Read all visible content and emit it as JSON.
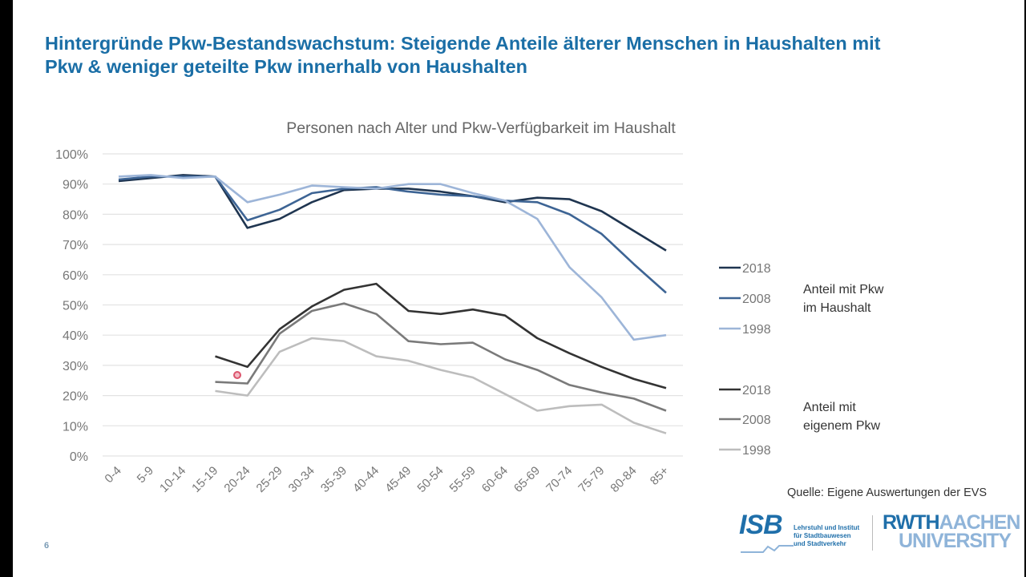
{
  "slide": {
    "title_line1": "Hintergründe Pkw-Bestandswachstum: Steigende Anteile älterer Menschen in Haushalten mit",
    "title_line2": "Pkw & weniger geteilte Pkw innerhalb von Haushalten",
    "source": "Quelle: Eigene Auswertungen der EVS",
    "page_number": "6",
    "logo_isb": {
      "acronym": "ISB",
      "line1": "Lehrstuhl und Institut",
      "line2": "für Stadtbauwesen",
      "line3": "und Stadtverkehr"
    },
    "logo_rwth": {
      "part1": "RWTH",
      "part2": "AACHEN",
      "part3": "UNIVERSITY"
    }
  },
  "chart_data": {
    "type": "line",
    "title": "Personen nach Alter und Pkw-Verfügbarkeit im Haushalt",
    "xlabel": "",
    "ylabel": "",
    "ylim": [
      0,
      100
    ],
    "yticks": [
      "0%",
      "10%",
      "20%",
      "30%",
      "40%",
      "50%",
      "60%",
      "70%",
      "80%",
      "90%",
      "100%"
    ],
    "grid": true,
    "categories": [
      "0-4",
      "5-9",
      "10-14",
      "15-19",
      "20-24",
      "25-29",
      "30-34",
      "35-39",
      "40-44",
      "45-49",
      "50-54",
      "55-59",
      "60-64",
      "65-69",
      "70-74",
      "75-79",
      "80-84",
      "85+"
    ],
    "legend_position": "right",
    "legend_groups": [
      {
        "label_line1": "Anteil mit Pkw",
        "label_line2": "im Haushalt"
      },
      {
        "label_line1": "Anteil mit",
        "label_line2": "eigenem Pkw"
      }
    ],
    "series": [
      {
        "name": "2018",
        "group": 0,
        "color": "#1f3550",
        "values": [
          91,
          92,
          93,
          92.5,
          75.5,
          78.5,
          84,
          88,
          88.5,
          88.5,
          87.5,
          86,
          84,
          85.5,
          85,
          81,
          74.5,
          68
        ]
      },
      {
        "name": "2008",
        "group": 0,
        "color": "#3d6494",
        "values": [
          91.5,
          92.5,
          92.5,
          92.5,
          78,
          81.5,
          87,
          88.5,
          89,
          87.5,
          86.5,
          86,
          84.5,
          84,
          80,
          73.5,
          63.5,
          54
        ]
      },
      {
        "name": "1998",
        "group": 0,
        "color": "#9db5d8",
        "values": [
          92.5,
          93,
          92,
          92.5,
          84,
          86.5,
          89.5,
          89,
          88.5,
          90,
          90,
          87,
          84.5,
          78.5,
          62.5,
          52.5,
          38.5,
          40
        ]
      },
      {
        "name": "2018",
        "group": 1,
        "color": "#333333",
        "values": [
          null,
          null,
          null,
          33,
          29.5,
          42,
          49.5,
          55,
          57,
          48,
          47,
          48.5,
          46.5,
          39,
          34,
          29.5,
          25.5,
          22.5
        ]
      },
      {
        "name": "2008",
        "group": 1,
        "color": "#7a7a7a",
        "values": [
          null,
          null,
          null,
          24.5,
          24,
          40.5,
          48,
          50.5,
          47,
          38,
          37,
          37.5,
          32,
          28.5,
          23.5,
          21,
          19,
          15
        ]
      },
      {
        "name": "1998",
        "group": 1,
        "color": "#bdbdbd",
        "values": [
          null,
          null,
          null,
          21.5,
          20,
          34.5,
          39,
          38,
          33,
          31.5,
          28.5,
          26,
          20.5,
          15,
          16.5,
          17,
          11,
          7.5
        ]
      }
    ]
  }
}
